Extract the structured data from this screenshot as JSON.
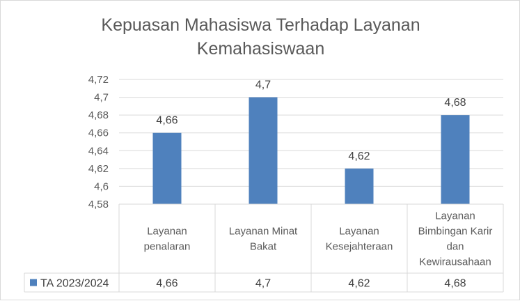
{
  "chart_data": {
    "type": "bar",
    "title": "Kepuasan Mahasiswa Terhadap Layanan\nKemahasiswaan",
    "xlabel": "",
    "ylabel": "",
    "ylim": [
      4.58,
      4.72
    ],
    "yticks": [
      "4,58",
      "4,6",
      "4,62",
      "4,64",
      "4,66",
      "4,68",
      "4,7",
      "4,72"
    ],
    "categories": [
      "Layanan penalaran",
      "Layanan Minat Bakat",
      "Layanan Kesejahteraan",
      "Layanan Bimbingan Karir dan Kewirausahaan"
    ],
    "category_lines": [
      [
        "Layanan",
        "penalaran"
      ],
      [
        "Layanan Minat",
        "Bakat"
      ],
      [
        "Layanan",
        "Kesejahteraan"
      ],
      [
        "Layanan",
        "Bimbingan Karir",
        "dan",
        "Kewirausahaan"
      ]
    ],
    "series": [
      {
        "name": "TA 2023/2024",
        "values": [
          4.66,
          4.7,
          4.62,
          4.68
        ],
        "labels": [
          "4,66",
          "4,7",
          "4,62",
          "4,68"
        ]
      }
    ],
    "bar_color": "#4f81bd",
    "grid": true,
    "legend": "data-table",
    "data_table": true
  }
}
